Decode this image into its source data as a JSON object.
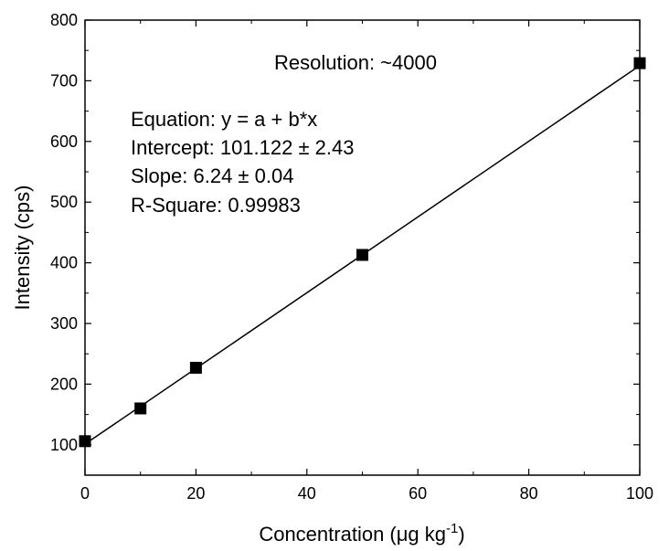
{
  "chart_data": {
    "type": "scatter",
    "xlabel": "Concentration (μg kg",
    "xlabel_sup": "-1",
    "xlabel_close": ")",
    "ylabel": "Intensity (cps)",
    "xlim": [
      0,
      100
    ],
    "ylim": [
      50,
      800
    ],
    "x_ticks": [
      0,
      20,
      40,
      60,
      80,
      100
    ],
    "y_ticks": [
      100,
      200,
      300,
      400,
      500,
      600,
      700,
      800
    ],
    "grid": false,
    "series": [
      {
        "x": [
          0,
          10,
          20,
          50,
          100
        ],
        "y": [
          106,
          160,
          227,
          413,
          729
        ],
        "marker": "square",
        "color": "#000000"
      }
    ],
    "fit_line": {
      "intercept": 101.122,
      "slope": 6.24,
      "x_range": [
        0,
        100
      ]
    },
    "annotations": {
      "resolution": "Resolution: ~4000",
      "equation": "Equation: y = a + b*x",
      "intercept": "Intercept: 101.122 ± 2.43",
      "slope": "Slope: 6.24 ± 0.04",
      "r_square": "R-Square: 0.99983"
    }
  }
}
